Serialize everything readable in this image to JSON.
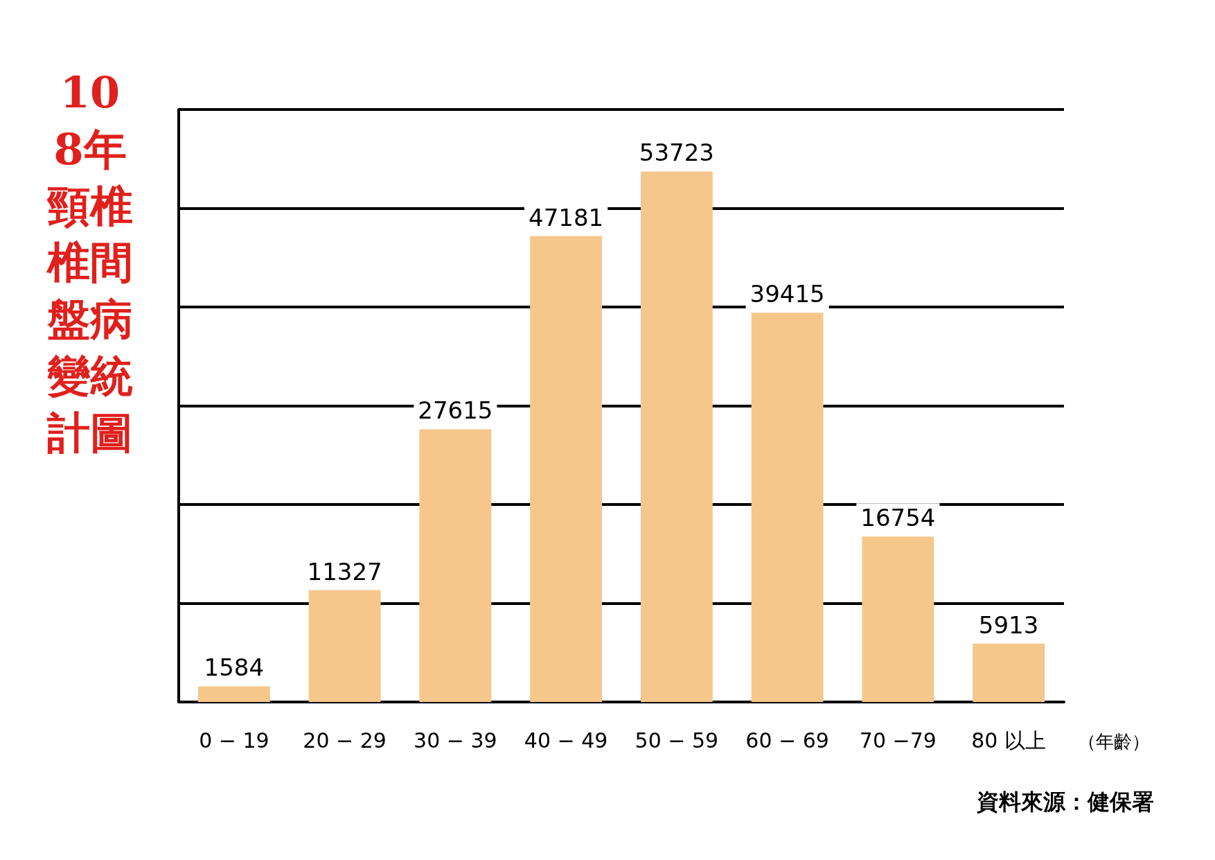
{
  "chart_data": {
    "type": "bar",
    "title": "108年頸椎椎間盤病變統計圖",
    "xlabel": "（年齡）",
    "categories": [
      "0 − 19",
      "20 − 29",
      "30 − 39",
      "40 − 49",
      "50 − 59",
      "60 − 69",
      "70 −79",
      "80 以上"
    ],
    "values": [
      1584,
      11327,
      27615,
      47181,
      53723,
      39415,
      16754,
      5913
    ],
    "color": "#f5c78a",
    "ylim": [
      0,
      60000
    ],
    "yticks": [
      {
        "value": 0,
        "label": null
      },
      {
        "value": 10000,
        "label": null
      },
      {
        "value": 20000,
        "label": null
      },
      {
        "value": 30000,
        "label": null
      },
      {
        "value": 40000,
        "label": null
      },
      {
        "value": 50000,
        "label": null
      },
      {
        "value": 60000,
        "label": null
      }
    ],
    "grid": "y",
    "tick_labels": "x",
    "data_labels": true,
    "annotations": [
      "資料來源：健保署"
    ]
  }
}
